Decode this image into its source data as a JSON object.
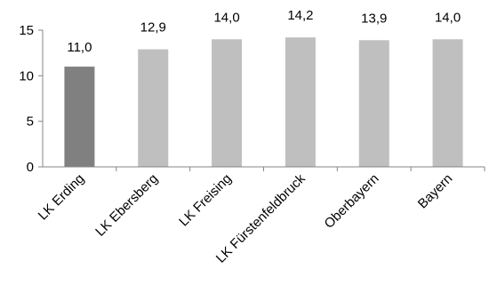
{
  "chart_data": {
    "type": "bar",
    "categories": [
      "LK Erding",
      "LK Ebersberg",
      "LK Freising",
      "LK Fürstenfeldbruck",
      "Oberbayern",
      "Bayern"
    ],
    "values": [
      11.0,
      12.9,
      14.0,
      14.2,
      13.9,
      14.0
    ],
    "data_labels": [
      "11,0",
      "12,9",
      "14,0",
      "14,2",
      "13,9",
      "14,0"
    ],
    "ylim": [
      0,
      15
    ],
    "yticks": [
      0,
      5,
      10,
      15
    ],
    "ytick_labels": [
      "0",
      "5",
      "10",
      "15"
    ],
    "title": "",
    "xlabel": "",
    "ylabel": "",
    "grid": false,
    "colors": {
      "highlight": "#808080",
      "default": "#bfbfbf",
      "axis": "#868686"
    },
    "highlight_index": 0
  }
}
